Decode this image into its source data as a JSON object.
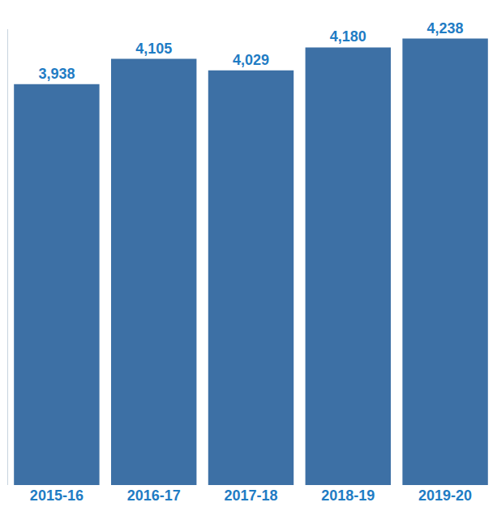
{
  "chart_data": {
    "type": "bar",
    "categories": [
      "2015-16",
      "2016-17",
      "2017-18",
      "2018-19",
      "2019-20"
    ],
    "values": [
      3938,
      4105,
      4029,
      4180,
      4238
    ],
    "value_labels": [
      "3,938",
      "4,105",
      "4,029",
      "4,180",
      "4,238"
    ],
    "data_labels": true,
    "color": "#3d70a5",
    "ylim": [
      1300,
      4300
    ],
    "yticks": [],
    "tick_labels": "x",
    "grid": false
  }
}
